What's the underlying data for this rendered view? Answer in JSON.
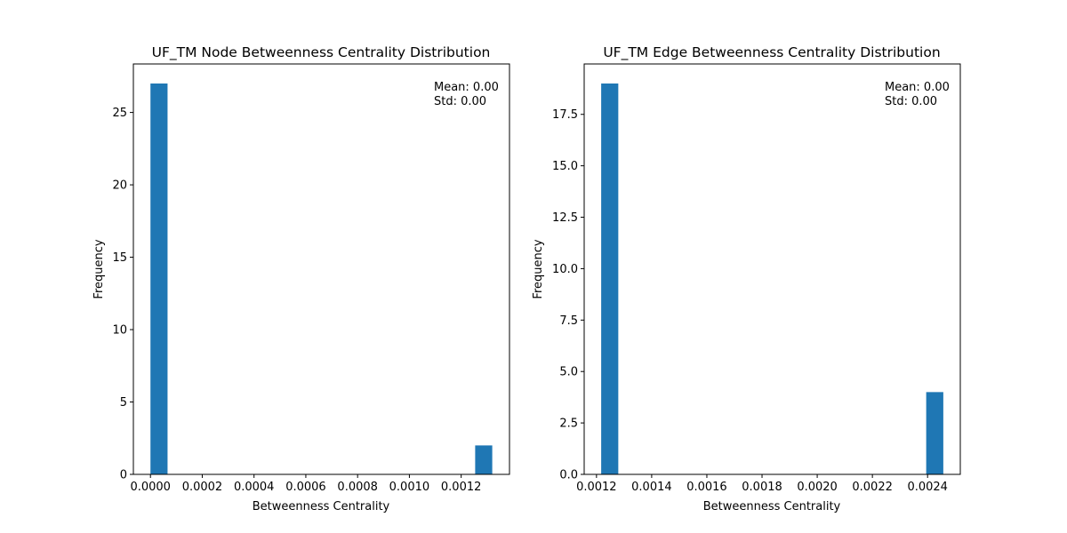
{
  "chart_data": [
    {
      "type": "bar",
      "title": "UF_TM Node Betweenness Centrality Distribution",
      "xlabel": "Betweenness Centrality",
      "ylabel": "Frequency",
      "xlim": [
        -6.6e-05,
        0.0013866
      ],
      "ylim": [
        0,
        28.35
      ],
      "bin_width": 6.6e-05,
      "bars": [
        {
          "x0": 0.0,
          "x1": 6.6e-05,
          "value": 27
        },
        {
          "x0": 0.001254,
          "x1": 0.00132,
          "value": 2
        }
      ],
      "xticks": [
        {
          "value": 0.0,
          "label": "0.0000"
        },
        {
          "value": 0.0002,
          "label": "0.0002"
        },
        {
          "value": 0.0004,
          "label": "0.0004"
        },
        {
          "value": 0.0006,
          "label": "0.0006"
        },
        {
          "value": 0.0008,
          "label": "0.0008"
        },
        {
          "value": 0.001,
          "label": "0.0010"
        },
        {
          "value": 0.0012,
          "label": "0.0012"
        }
      ],
      "yticks": [
        {
          "value": 0,
          "label": "0"
        },
        {
          "value": 5,
          "label": "5"
        },
        {
          "value": 10,
          "label": "10"
        },
        {
          "value": 15,
          "label": "15"
        },
        {
          "value": 20,
          "label": "20"
        },
        {
          "value": 25,
          "label": "25"
        }
      ],
      "annotation_lines": [
        "Mean: 0.00",
        "Std: 0.00"
      ],
      "bar_color": "#1f77b4",
      "grid": false
    },
    {
      "type": "bar",
      "title": "UF_TM Edge Betweenness Centrality Distribution",
      "xlabel": "Betweenness Centrality",
      "ylabel": "Frequency",
      "xlim": [
        0.0011554,
        0.0025186
      ],
      "ylim": [
        0,
        19.95
      ],
      "bin_width": 6.2e-05,
      "bars": [
        {
          "x0": 0.001217,
          "x1": 0.001279,
          "value": 19
        },
        {
          "x0": 0.002395,
          "x1": 0.002457,
          "value": 4
        }
      ],
      "xticks": [
        {
          "value": 0.0012,
          "label": "0.0012"
        },
        {
          "value": 0.0014,
          "label": "0.0014"
        },
        {
          "value": 0.0016,
          "label": "0.0016"
        },
        {
          "value": 0.0018,
          "label": "0.0018"
        },
        {
          "value": 0.002,
          "label": "0.0020"
        },
        {
          "value": 0.0022,
          "label": "0.0022"
        },
        {
          "value": 0.0024,
          "label": "0.0024"
        }
      ],
      "yticks": [
        {
          "value": 0.0,
          "label": "0.0"
        },
        {
          "value": 2.5,
          "label": "2.5"
        },
        {
          "value": 5.0,
          "label": "5.0"
        },
        {
          "value": 7.5,
          "label": "7.5"
        },
        {
          "value": 10.0,
          "label": "10.0"
        },
        {
          "value": 12.5,
          "label": "12.5"
        },
        {
          "value": 15.0,
          "label": "15.0"
        },
        {
          "value": 17.5,
          "label": "17.5"
        }
      ],
      "annotation_lines": [
        "Mean: 0.00",
        "Std: 0.00"
      ],
      "bar_color": "#1f77b4",
      "grid": false
    }
  ]
}
